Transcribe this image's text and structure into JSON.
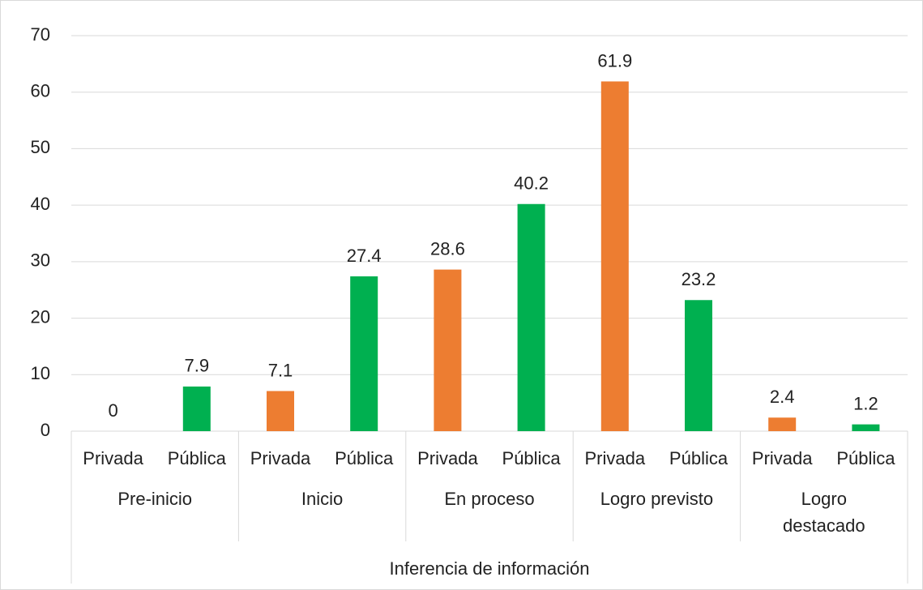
{
  "chart_data": {
    "type": "bar",
    "xlabel": "Inferencia de información",
    "categories": [
      "Pre-inicio",
      "Inicio",
      "En proceso",
      "Logro previsto",
      "Logro destacado"
    ],
    "series": [
      {
        "name": "Privada",
        "color": "#ed7d31",
        "values": [
          0,
          7.1,
          28.6,
          61.9,
          2.4
        ]
      },
      {
        "name": "Pública",
        "color": "#00b050",
        "values": [
          7.9,
          27.4,
          40.2,
          23.2,
          1.2
        ]
      }
    ],
    "ylim": [
      0,
      70
    ],
    "yticks": [
      0,
      10,
      20,
      30,
      40,
      50,
      60,
      70
    ],
    "grid": true
  }
}
